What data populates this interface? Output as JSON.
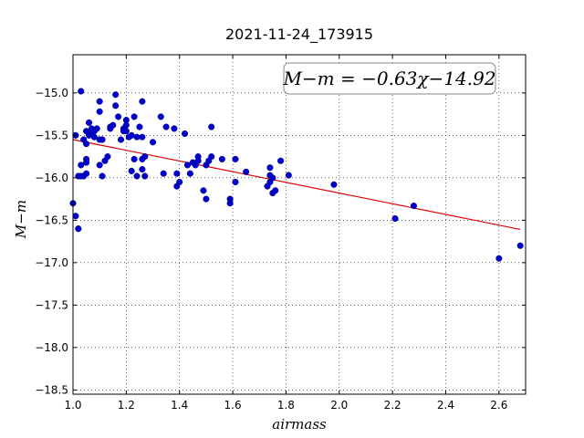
{
  "chart_data": {
    "type": "scatter",
    "title": "2021-11-24_173915",
    "xlabel": "airmass",
    "ylabel": "M−m",
    "xlim": [
      1.0,
      2.7
    ],
    "ylim": [
      -18.55,
      -14.55
    ],
    "x_ticks": [
      "1.0",
      "1.2",
      "1.4",
      "1.6",
      "1.8",
      "2.0",
      "2.2",
      "2.4",
      "2.6"
    ],
    "y_ticks": [
      "−15.0",
      "−15.5",
      "−16.0",
      "−16.5",
      "−17.0",
      "−17.5",
      "−18.0",
      "−18.5"
    ],
    "grid": true,
    "annotation": "M−m = −0.63χ−14.92",
    "fit_line": {
      "slope": -0.63,
      "intercept": -14.92,
      "x_range": [
        1.0,
        2.68
      ]
    },
    "colors": {
      "points": "#0000cc",
      "fit": "#dd0000"
    },
    "points": [
      [
        1.0,
        -16.3
      ],
      [
        1.01,
        -15.5
      ],
      [
        1.01,
        -16.45
      ],
      [
        1.02,
        -16.6
      ],
      [
        1.02,
        -16.6
      ],
      [
        1.02,
        -15.98
      ],
      [
        1.03,
        -14.98
      ],
      [
        1.03,
        -15.85
      ],
      [
        1.03,
        -15.98
      ],
      [
        1.04,
        -15.55
      ],
      [
        1.04,
        -15.98
      ],
      [
        1.05,
        -15.6
      ],
      [
        1.05,
        -15.45
      ],
      [
        1.05,
        -15.78
      ],
      [
        1.05,
        -15.82
      ],
      [
        1.05,
        -15.95
      ],
      [
        1.06,
        -15.35
      ],
      [
        1.06,
        -15.5
      ],
      [
        1.07,
        -15.48
      ],
      [
        1.07,
        -15.42
      ],
      [
        1.08,
        -15.45
      ],
      [
        1.08,
        -15.52
      ],
      [
        1.09,
        -15.42
      ],
      [
        1.1,
        -15.1
      ],
      [
        1.1,
        -15.22
      ],
      [
        1.1,
        -15.55
      ],
      [
        1.1,
        -15.85
      ],
      [
        1.11,
        -15.55
      ],
      [
        1.11,
        -15.98
      ],
      [
        1.12,
        -15.8
      ],
      [
        1.13,
        -15.75
      ],
      [
        1.14,
        -15.4
      ],
      [
        1.14,
        -15.42
      ],
      [
        1.15,
        -15.38
      ],
      [
        1.16,
        -15.02
      ],
      [
        1.16,
        -15.15
      ],
      [
        1.17,
        -15.28
      ],
      [
        1.18,
        -15.55
      ],
      [
        1.19,
        -15.42
      ],
      [
        1.19,
        -15.45
      ],
      [
        1.2,
        -15.32
      ],
      [
        1.2,
        -15.38
      ],
      [
        1.2,
        -15.45
      ],
      [
        1.21,
        -15.52
      ],
      [
        1.22,
        -15.5
      ],
      [
        1.22,
        -15.92
      ],
      [
        1.23,
        -15.28
      ],
      [
        1.23,
        -15.78
      ],
      [
        1.24,
        -15.98
      ],
      [
        1.24,
        -15.52
      ],
      [
        1.25,
        -15.4
      ],
      [
        1.26,
        -15.1
      ],
      [
        1.26,
        -15.52
      ],
      [
        1.26,
        -15.9
      ],
      [
        1.26,
        -15.78
      ],
      [
        1.27,
        -15.75
      ],
      [
        1.27,
        -15.98
      ],
      [
        1.3,
        -15.58
      ],
      [
        1.33,
        -15.28
      ],
      [
        1.34,
        -15.95
      ],
      [
        1.35,
        -15.4
      ],
      [
        1.38,
        -15.42
      ],
      [
        1.39,
        -15.95
      ],
      [
        1.39,
        -16.1
      ],
      [
        1.4,
        -16.05
      ],
      [
        1.42,
        -15.48
      ],
      [
        1.43,
        -15.85
      ],
      [
        1.44,
        -15.95
      ],
      [
        1.45,
        -15.82
      ],
      [
        1.46,
        -15.85
      ],
      [
        1.47,
        -15.75
      ],
      [
        1.47,
        -15.8
      ],
      [
        1.49,
        -16.15
      ],
      [
        1.5,
        -16.25
      ],
      [
        1.5,
        -15.85
      ],
      [
        1.51,
        -15.8
      ],
      [
        1.52,
        -15.75
      ],
      [
        1.52,
        -15.4
      ],
      [
        1.56,
        -15.78
      ],
      [
        1.59,
        -16.25
      ],
      [
        1.59,
        -16.3
      ],
      [
        1.61,
        -16.05
      ],
      [
        1.61,
        -15.78
      ],
      [
        1.65,
        -15.93
      ],
      [
        1.73,
        -16.1
      ],
      [
        1.74,
        -16.05
      ],
      [
        1.74,
        -15.88
      ],
      [
        1.74,
        -15.97
      ],
      [
        1.75,
        -16.0
      ],
      [
        1.75,
        -16.18
      ],
      [
        1.76,
        -16.15
      ],
      [
        1.78,
        -15.8
      ],
      [
        1.81,
        -15.97
      ],
      [
        1.98,
        -16.08
      ],
      [
        2.21,
        -16.48
      ],
      [
        2.28,
        -16.33
      ],
      [
        2.6,
        -16.95
      ],
      [
        2.68,
        -16.8
      ]
    ]
  }
}
